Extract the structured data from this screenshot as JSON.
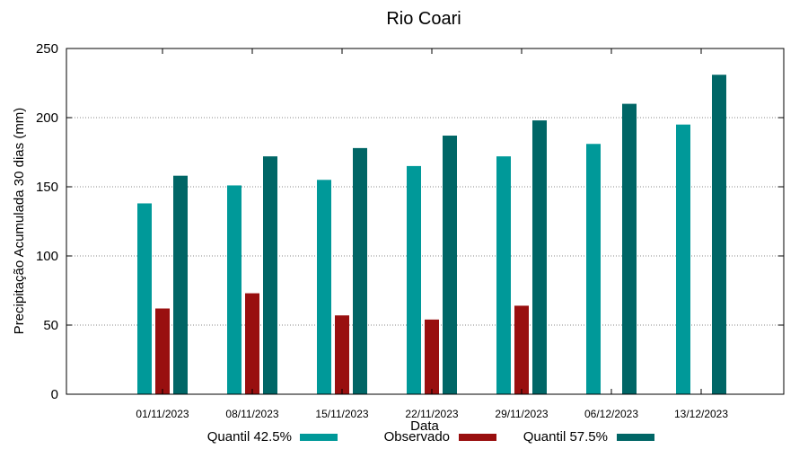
{
  "chart_data": {
    "type": "bar",
    "title": "Rio Coari",
    "xlabel": "Data",
    "ylabel": "Precipitação Acumulada 30 dias (mm)",
    "ylim": [
      0,
      250
    ],
    "yticks": [
      0,
      50,
      100,
      150,
      200,
      250
    ],
    "grid": true,
    "legend_position": "bottom",
    "categories": [
      "01/11/2023",
      "08/11/2023",
      "15/11/2023",
      "22/11/2023",
      "29/11/2023",
      "06/12/2023",
      "13/12/2023"
    ],
    "series": [
      {
        "name": "Quantil 42.5%",
        "color": "#009999",
        "values": [
          138,
          151,
          155,
          165,
          172,
          181,
          195
        ]
      },
      {
        "name": "Observado",
        "color": "#990f0f",
        "values": [
          62,
          73,
          57,
          54,
          64,
          null,
          null
        ]
      },
      {
        "name": "Quantil 57.5%",
        "color": "#006666",
        "values": [
          158,
          172,
          178,
          187,
          198,
          210,
          231
        ]
      }
    ]
  }
}
